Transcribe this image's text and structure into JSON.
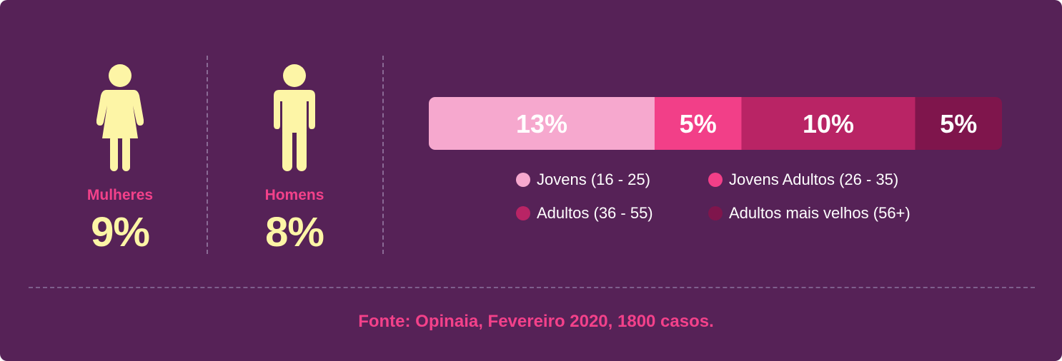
{
  "theme": {
    "background": "#562257",
    "figure": "#fdf5a6",
    "accent": "#f3418a"
  },
  "gender": {
    "women": {
      "label": "Mulheres",
      "value": "9%",
      "icon": "woman-icon"
    },
    "men": {
      "label": "Homens",
      "value": "8%",
      "icon": "man-icon"
    }
  },
  "chart_data": {
    "type": "bar",
    "orientation": "horizontal-stacked",
    "title": "",
    "xlabel": "",
    "ylabel": "",
    "categories": [
      ""
    ],
    "series": [
      {
        "name": "Jovens (16 - 25)",
        "values": [
          13
        ],
        "label": "13%",
        "color": "#f6a8ce"
      },
      {
        "name": "Jovens Adultos (26 - 35)",
        "values": [
          5
        ],
        "label": "5%",
        "color": "#f23f88"
      },
      {
        "name": "Adultos (36 - 55)",
        "values": [
          10
        ],
        "label": "10%",
        "color": "#b92465"
      },
      {
        "name": "Adultos mais velhos (56+)",
        "values": [
          5
        ],
        "label": "5%",
        "color": "#7f154c"
      }
    ],
    "legend": "bottom",
    "grid": false
  },
  "footer": {
    "source": "Fonte: Opinaia, Fevereiro 2020, 1800 casos."
  }
}
